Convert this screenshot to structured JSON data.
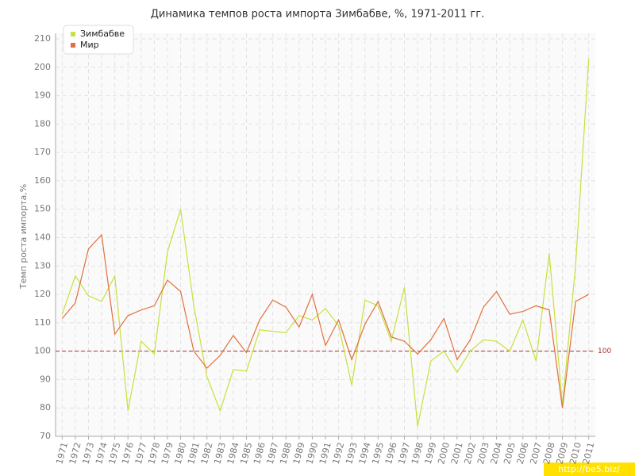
{
  "chart_data": {
    "type": "line",
    "title": "Динамика темпов роста импорта Зимбабве, %, 1971-2011 гг.",
    "y_label": "Темп роста импорта,%",
    "categories": [
      "1971",
      "1972",
      "1973",
      "1974",
      "1975",
      "1976",
      "1977",
      "1978",
      "1979",
      "1980",
      "1981",
      "1982",
      "1983",
      "1984",
      "1985",
      "1986",
      "1987",
      "1988",
      "1989",
      "1990",
      "1991",
      "1992",
      "1993",
      "1994",
      "1995",
      "1996",
      "1997",
      "1998",
      "1999",
      "2000",
      "2001",
      "2002",
      "2003",
      "2004",
      "2005",
      "2006",
      "2007",
      "2008",
      "2009",
      "2010",
      "2011"
    ],
    "series": [
      {
        "name": "Зимбабве",
        "color": "#c8e03c",
        "values": [
          113,
          126.5,
          119.5,
          117.5,
          126.5,
          79,
          103.5,
          99,
          135,
          150,
          116,
          91,
          79,
          93.5,
          93,
          107.5,
          107,
          106.5,
          112.5,
          111,
          115,
          109,
          88,
          118,
          116,
          103.5,
          122.5,
          73.5,
          96.5,
          100,
          92.5,
          100,
          104,
          103.5,
          100,
          111,
          96.5,
          134.5,
          81,
          130,
          203
        ]
      },
      {
        "name": "Мир",
        "color": "#e0703c",
        "values": [
          111.5,
          117,
          136,
          141,
          106,
          112.5,
          114.5,
          116,
          125,
          121,
          100,
          94,
          98.5,
          105.5,
          99.5,
          111,
          118,
          115.5,
          108.5,
          120,
          102,
          111,
          97,
          109.5,
          117.5,
          105,
          103.5,
          99,
          104,
          111.5,
          97,
          104,
          115.5,
          121,
          113,
          114,
          116,
          114.5,
          80,
          117.5,
          120
        ]
      }
    ],
    "reference_line": {
      "value": 100,
      "color": "#a83232"
    },
    "ylim": [
      70,
      210
    ],
    "yticks": [
      70,
      80,
      90,
      100,
      110,
      120,
      130,
      140,
      150,
      160,
      170,
      180,
      190,
      200,
      210
    ],
    "grid": true,
    "legend": "top-left",
    "watermark": "http://be5.biz/"
  }
}
